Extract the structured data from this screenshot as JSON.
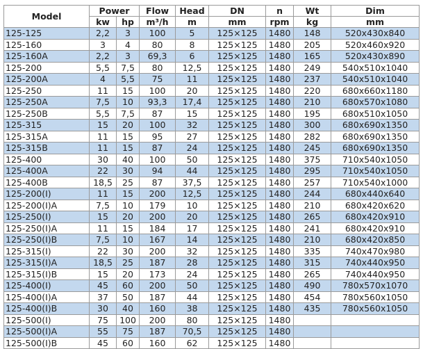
{
  "header": {
    "model": "Model",
    "power": "Power",
    "flow": "Flow",
    "head": "Head",
    "dn": "DN",
    "n": "n",
    "wt": "Wt",
    "dim": "Dim",
    "units": {
      "kw": "kw",
      "hp": "hp",
      "flow": "m³/h",
      "head": "m",
      "dn": "mm",
      "n": "rpm",
      "wt": "kg",
      "dim": "mm"
    }
  },
  "colors": {
    "alt_row": "#c3d8ee",
    "border": "#9a9a9a"
  },
  "rows": [
    [
      "125-125",
      "2,2",
      "3",
      "100",
      "5",
      "125×125",
      "1480",
      "148",
      "520x430x840"
    ],
    [
      "125-160",
      "3",
      "4",
      "80",
      "8",
      "125×125",
      "1480",
      "205",
      "520x460x920"
    ],
    [
      "125-160A",
      "2,2",
      "3",
      "69,3",
      "6",
      "125×125",
      "1480",
      "165",
      "520x430x890"
    ],
    [
      "125-200",
      "5,5",
      "7,5",
      "80",
      "12,5",
      "125×125",
      "1480",
      "249",
      "540x510x1040"
    ],
    [
      "125-200A",
      "4",
      "5,5",
      "75",
      "11",
      "125×125",
      "1480",
      "237",
      "540x510x1040"
    ],
    [
      "125-250",
      "11",
      "15",
      "100",
      "20",
      "125×125",
      "1480",
      "220",
      "680x660x1180"
    ],
    [
      "125-250A",
      "7,5",
      "10",
      "93,3",
      "17,4",
      "125×125",
      "1480",
      "210",
      "680x570x1080"
    ],
    [
      "125-250B",
      "5,5",
      "7,5",
      "87",
      "15",
      "125×125",
      "1480",
      "195",
      "680x510x1050"
    ],
    [
      "125-315",
      "15",
      "20",
      "100",
      "32",
      "125×125",
      "1480",
      "300",
      "680x690x1350"
    ],
    [
      "125-315A",
      "11",
      "15",
      "95",
      "27",
      "125×125",
      "1480",
      "282",
      "680x690x1350"
    ],
    [
      "125-315B",
      "11",
      "15",
      "87",
      "24",
      "125×125",
      "1480",
      "245",
      "680x690x1350"
    ],
    [
      "125-400",
      "30",
      "40",
      "100",
      "50",
      "125×125",
      "1480",
      "375",
      "710x540x1050"
    ],
    [
      "125-400A",
      "22",
      "30",
      "94",
      "44",
      "125×125",
      "1480",
      "295",
      "710x540x1050"
    ],
    [
      "125-400B",
      "18,5",
      "25",
      "87",
      "37,5",
      "125×125",
      "1480",
      "257",
      "710x540x1000"
    ],
    [
      "125-200(I)",
      "11",
      "15",
      "200",
      "12,5",
      "125×125",
      "1480",
      "244",
      "680x440x640"
    ],
    [
      "125-200(I)A",
      "7,5",
      "10",
      "179",
      "10",
      "125×125",
      "1480",
      "210",
      "680x420x620"
    ],
    [
      "125-250(I)",
      "15",
      "20",
      "200",
      "20",
      "125×125",
      "1480",
      "265",
      "680x420x910"
    ],
    [
      "125-250(I)A",
      "11",
      "15",
      "184",
      "17",
      "125×125",
      "1480",
      "241",
      "680x420x910"
    ],
    [
      "125-250(I)B",
      "7,5",
      "10",
      "167",
      "14",
      "125×125",
      "1480",
      "210",
      "680x420x850"
    ],
    [
      "125-315(I)",
      "22",
      "30",
      "200",
      "32",
      "125×125",
      "1480",
      "335",
      "740x470x980"
    ],
    [
      "125-315(I)A",
      "18,5",
      "25",
      "187",
      "28",
      "125×125",
      "1480",
      "315",
      "740x440x950"
    ],
    [
      "125-315(I)B",
      "15",
      "20",
      "173",
      "24",
      "125×125",
      "1480",
      "265",
      "740x440x950"
    ],
    [
      "125-400(I)",
      "45",
      "60",
      "200",
      "50",
      "125×125",
      "1480",
      "490",
      "780x570x1070"
    ],
    [
      "125-400(I)A",
      "37",
      "50",
      "187",
      "44",
      "125×125",
      "1480",
      "454",
      "780x560x1050"
    ],
    [
      "125-400(I)B",
      "30",
      "40",
      "160",
      "38",
      "125×125",
      "1480",
      "435",
      "780x560x1050"
    ],
    [
      "125-500(I)",
      "75",
      "100",
      "200",
      "80",
      "125×125",
      "1480",
      "",
      ""
    ],
    [
      "125-500(I)A",
      "55",
      "75",
      "187",
      "70,5",
      "125×125",
      "1480",
      "",
      ""
    ],
    [
      "125-500(I)B",
      "45",
      "60",
      "160",
      "62",
      "125×125",
      "1480",
      "",
      ""
    ]
  ]
}
